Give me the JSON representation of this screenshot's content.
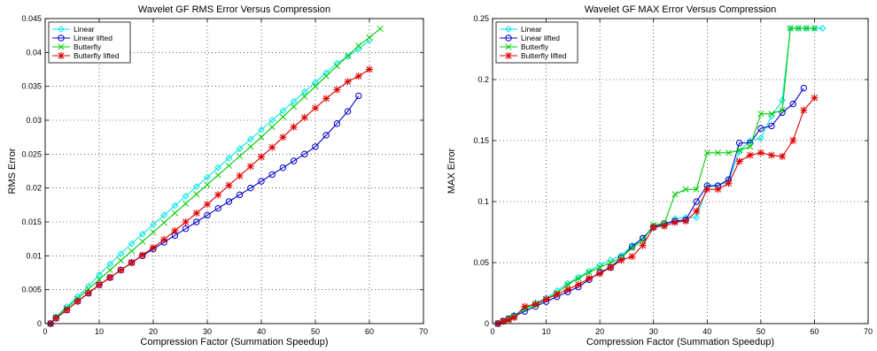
{
  "chart_data": [
    {
      "type": "line",
      "title": "Wavelet GF RMS Error Versus Compression",
      "xlabel": "Compression Factor (Summation Speedup)",
      "ylabel": "RMS Error",
      "xlim": [
        0,
        70
      ],
      "ylim": [
        0,
        0.045
      ],
      "xticks": [
        "0",
        "10",
        "20",
        "30",
        "40",
        "50",
        "60",
        "70"
      ],
      "yticks": [
        "0",
        "0.005",
        "0.01",
        "0.015",
        "0.02",
        "0.025",
        "0.03",
        "0.035",
        "0.04",
        "0.045"
      ],
      "grid": true,
      "legend_position": "top-left",
      "series": [
        {
          "name": "Linear",
          "color": "#00e5e5",
          "marker": "diamond",
          "x": [
            1,
            2,
            4,
            6,
            8,
            10,
            12,
            14,
            16,
            18,
            20,
            22,
            24,
            26,
            28,
            30,
            32,
            34,
            36,
            38,
            40,
            42,
            44,
            46,
            48,
            50,
            52,
            54,
            56,
            58,
            60
          ],
          "y": [
            0,
            0.001,
            0.0025,
            0.004,
            0.0055,
            0.0072,
            0.0088,
            0.0103,
            0.0118,
            0.0132,
            0.0146,
            0.016,
            0.0174,
            0.0188,
            0.0202,
            0.0216,
            0.023,
            0.0244,
            0.0258,
            0.0272,
            0.0286,
            0.03,
            0.0314,
            0.0328,
            0.0342,
            0.0356,
            0.037,
            0.0384,
            0.0394,
            0.0405,
            0.0418
          ]
        },
        {
          "name": "Linear lifted",
          "color": "#0000cc",
          "marker": "circle",
          "x": [
            1,
            2,
            4,
            6,
            8,
            10,
            12,
            14,
            16,
            18,
            20,
            22,
            24,
            26,
            28,
            30,
            32,
            34,
            36,
            38,
            40,
            42,
            44,
            46,
            48,
            50,
            52,
            54,
            56,
            58
          ],
          "y": [
            0,
            0.0008,
            0.002,
            0.0033,
            0.0045,
            0.0057,
            0.0068,
            0.0079,
            0.009,
            0.01,
            0.011,
            0.012,
            0.013,
            0.014,
            0.015,
            0.016,
            0.017,
            0.018,
            0.019,
            0.02,
            0.021,
            0.022,
            0.023,
            0.024,
            0.025,
            0.0261,
            0.0278,
            0.0295,
            0.0313,
            0.0336
          ]
        },
        {
          "name": "Butterfly",
          "color": "#00cc00",
          "marker": "x",
          "x": [
            1,
            2,
            4,
            6,
            8,
            10,
            12,
            14,
            16,
            18,
            20,
            22,
            24,
            26,
            28,
            30,
            32,
            34,
            36,
            38,
            40,
            42,
            44,
            46,
            48,
            50,
            52,
            54,
            56,
            58,
            60,
            62
          ],
          "y": [
            0,
            0.0009,
            0.0023,
            0.0037,
            0.0051,
            0.0065,
            0.0079,
            0.0093,
            0.0107,
            0.0121,
            0.0135,
            0.0149,
            0.0163,
            0.0177,
            0.0191,
            0.0205,
            0.0219,
            0.0233,
            0.0247,
            0.0261,
            0.0275,
            0.029,
            0.0305,
            0.032,
            0.0335,
            0.035,
            0.0365,
            0.038,
            0.0395,
            0.041,
            0.0422,
            0.0435
          ]
        },
        {
          "name": "Butterfly lifted",
          "color": "#dd0000",
          "marker": "star",
          "x": [
            1,
            2,
            4,
            6,
            8,
            10,
            12,
            14,
            16,
            18,
            20,
            22,
            24,
            26,
            28,
            30,
            32,
            34,
            36,
            38,
            40,
            42,
            44,
            46,
            48,
            50,
            52,
            54,
            56,
            58,
            60
          ],
          "y": [
            0,
            0.0008,
            0.002,
            0.0033,
            0.0045,
            0.0057,
            0.0068,
            0.0079,
            0.009,
            0.0101,
            0.0112,
            0.0124,
            0.0137,
            0.015,
            0.0163,
            0.0176,
            0.019,
            0.0204,
            0.0218,
            0.0232,
            0.0246,
            0.026,
            0.0275,
            0.029,
            0.0304,
            0.0318,
            0.0332,
            0.0345,
            0.0357,
            0.0365,
            0.0375
          ]
        }
      ]
    },
    {
      "type": "line",
      "title": "Wavelet GF MAX Error Versus Compression",
      "xlabel": "Compression Factor (Summation Speedup)",
      "ylabel": "MAX Error",
      "xlim": [
        0,
        70
      ],
      "ylim": [
        0,
        0.25
      ],
      "xticks": [
        "0",
        "10",
        "20",
        "30",
        "40",
        "50",
        "60",
        "70"
      ],
      "yticks": [
        "0",
        "0.05",
        "0.1",
        "0.15",
        "0.2",
        "0.25"
      ],
      "grid": true,
      "legend_position": "top-left",
      "series": [
        {
          "name": "Linear",
          "color": "#00e5e5",
          "marker": "diamond",
          "x": [
            1,
            2,
            3,
            4,
            6,
            8,
            10,
            12,
            14,
            16,
            18,
            20,
            22,
            24,
            26,
            28,
            30,
            32,
            34,
            36,
            38,
            40,
            42,
            44,
            46,
            48,
            50,
            52,
            54,
            55.5,
            57,
            58.5,
            60,
            61.5
          ],
          "y": [
            0,
            0.002,
            0.004,
            0.007,
            0.012,
            0.017,
            0.021,
            0.027,
            0.033,
            0.038,
            0.043,
            0.048,
            0.052,
            0.056,
            0.064,
            0.07,
            0.08,
            0.08,
            0.086,
            0.087,
            0.087,
            0.112,
            0.113,
            0.117,
            0.141,
            0.15,
            0.152,
            0.17,
            0.183,
            0.242,
            0.242,
            0.242,
            0.242,
            0.242
          ]
        },
        {
          "name": "Linear lifted",
          "color": "#0000cc",
          "marker": "circle",
          "x": [
            1,
            2,
            3,
            4,
            6,
            8,
            10,
            12,
            14,
            16,
            18,
            20,
            22,
            24,
            26,
            28,
            30,
            32,
            34,
            36,
            38,
            40,
            42,
            44,
            46,
            48,
            50,
            52,
            54,
            56,
            58
          ],
          "y": [
            0,
            0.002,
            0.004,
            0.006,
            0.01,
            0.014,
            0.018,
            0.022,
            0.026,
            0.03,
            0.036,
            0.042,
            0.046,
            0.054,
            0.063,
            0.07,
            0.079,
            0.082,
            0.084,
            0.085,
            0.1,
            0.113,
            0.113,
            0.118,
            0.148,
            0.148,
            0.16,
            0.162,
            0.173,
            0.18,
            0.193
          ]
        },
        {
          "name": "Butterfly",
          "color": "#00cc00",
          "marker": "x",
          "x": [
            1,
            2,
            3,
            4,
            6,
            8,
            10,
            12,
            14,
            16,
            18,
            20,
            22,
            24,
            26,
            28,
            30,
            32,
            34,
            36,
            38,
            40,
            42,
            44,
            46,
            48,
            50,
            52,
            54,
            55.5,
            57,
            58.5,
            60
          ],
          "y": [
            0,
            0.002,
            0.004,
            0.006,
            0.012,
            0.015,
            0.02,
            0.025,
            0.032,
            0.037,
            0.042,
            0.046,
            0.05,
            0.054,
            0.062,
            0.068,
            0.081,
            0.082,
            0.106,
            0.11,
            0.11,
            0.14,
            0.14,
            0.14,
            0.142,
            0.145,
            0.172,
            0.172,
            0.175,
            0.242,
            0.242,
            0.242,
            0.242
          ]
        },
        {
          "name": "Butterfly lifted",
          "color": "#dd0000",
          "marker": "star",
          "x": [
            1,
            2,
            3,
            4,
            6,
            8,
            10,
            12,
            14,
            16,
            18,
            20,
            22,
            24,
            26,
            28,
            30,
            32,
            34,
            36,
            38,
            40,
            42,
            44,
            46,
            48,
            50,
            52,
            54,
            56,
            58,
            60
          ],
          "y": [
            0,
            0.002,
            0.003,
            0.005,
            0.014,
            0.016,
            0.02,
            0.024,
            0.028,
            0.032,
            0.037,
            0.041,
            0.046,
            0.052,
            0.055,
            0.064,
            0.079,
            0.08,
            0.083,
            0.084,
            0.092,
            0.11,
            0.11,
            0.115,
            0.133,
            0.138,
            0.14,
            0.138,
            0.137,
            0.15,
            0.175,
            0.185
          ]
        }
      ]
    }
  ]
}
